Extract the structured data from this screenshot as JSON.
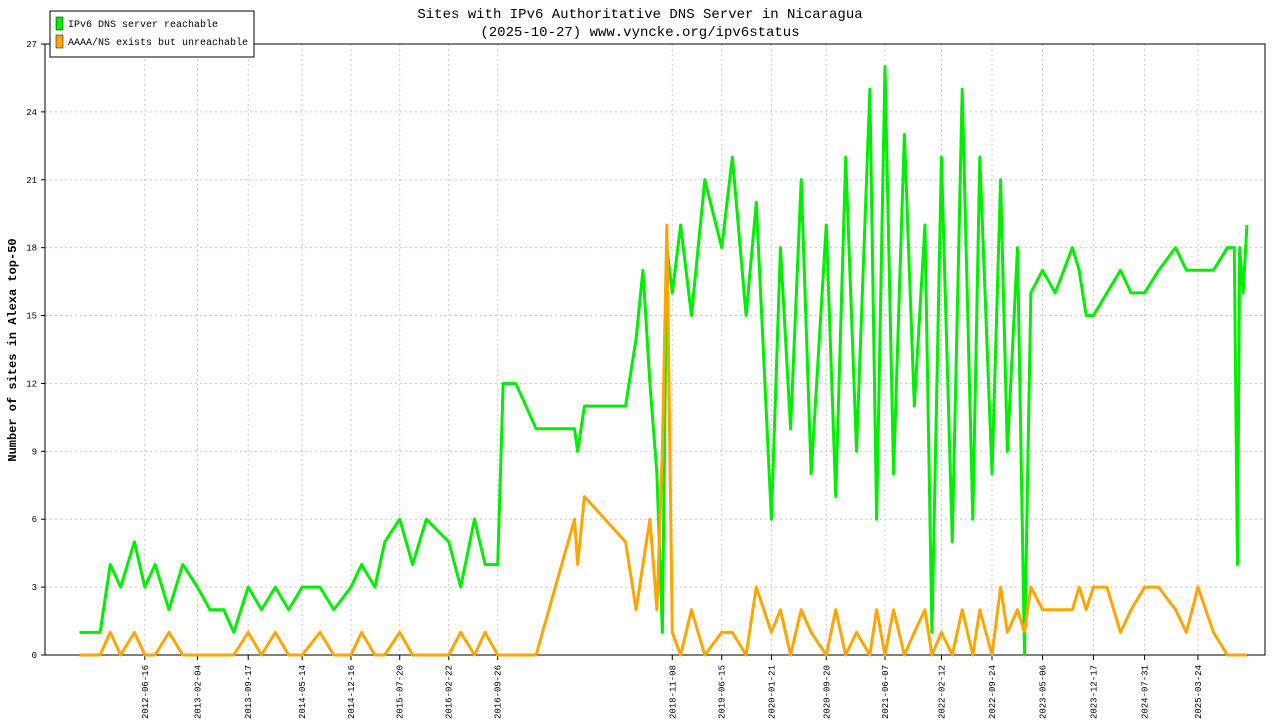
{
  "chart_data": {
    "type": "line",
    "title": "Sites with IPv6 Authoritative DNS Server in Nicaragua",
    "subtitle": "(2025-10-27) www.vyncke.org/ipv6status",
    "y_label": "Number of sites in Alexa top-50",
    "x": [
      "2011-09-01",
      "2011-12-01",
      "2012-01-15",
      "2012-03-01",
      "2012-05-01",
      "2012-06-16",
      "2012-08-01",
      "2012-10-01",
      "2012-12-01",
      "2013-02-04",
      "2013-04-01",
      "2013-06-01",
      "2013-07-15",
      "2013-09-17",
      "2013-11-15",
      "2014-01-15",
      "2014-03-15",
      "2014-05-14",
      "2014-08-01",
      "2014-10-01",
      "2014-12-16",
      "2015-02-01",
      "2015-04-01",
      "2015-05-15",
      "2015-07-20",
      "2015-09-15",
      "2015-11-15",
      "2016-02-22",
      "2016-04-15",
      "2016-06-15",
      "2016-08-01",
      "2016-09-26",
      "2016-10-20",
      "2016-12-15",
      "2017-03-15",
      "2017-09-01",
      "2017-09-15",
      "2017-10-15",
      "2018-04-15",
      "2018-06-01",
      "2018-07-01",
      "2018-08-01",
      "2018-09-01",
      "2018-09-25",
      "2018-10-15",
      "2018-11-08",
      "2018-12-15",
      "2019-02-01",
      "2019-04-01",
      "2019-06-15",
      "2019-08-01",
      "2019-10-01",
      "2019-11-15",
      "2020-01-21",
      "2020-03-01",
      "2020-04-15",
      "2020-06-01",
      "2020-07-15",
      "2020-09-20",
      "2020-11-01",
      "2020-12-15",
      "2021-02-01",
      "2021-04-01",
      "2021-05-01",
      "2021-06-07",
      "2021-07-15",
      "2021-09-01",
      "2021-10-15",
      "2021-12-01",
      "2022-01-01",
      "2022-02-12",
      "2022-04-01",
      "2022-05-15",
      "2022-07-01",
      "2022-08-01",
      "2022-09-24",
      "2022-11-01",
      "2022-12-01",
      "2023-01-15",
      "2023-02-15",
      "2023-03-15",
      "2023-05-06",
      "2023-07-01",
      "2023-09-15",
      "2023-10-15",
      "2023-11-15",
      "2023-12-17",
      "2024-02-15",
      "2024-04-15",
      "2024-06-01",
      "2024-07-31",
      "2024-10-01",
      "2024-12-15",
      "2025-02-01",
      "2025-03-24",
      "2025-06-01",
      "2025-08-01",
      "2025-09-01",
      "2025-09-15",
      "2025-09-25",
      "2025-10-10",
      "2025-10-27"
    ],
    "series": [
      {
        "name": "IPv6 DNS server reachable",
        "color": "#00ee00",
        "values": [
          1,
          1,
          4,
          3,
          5,
          3,
          4,
          2,
          4,
          3,
          2,
          2,
          1,
          3,
          2,
          3,
          2,
          3,
          3,
          2,
          3,
          4,
          3,
          5,
          6,
          4,
          6,
          5,
          3,
          6,
          4,
          4,
          12,
          12,
          10,
          10,
          9,
          11,
          11,
          14,
          17,
          12,
          8,
          1,
          18,
          16,
          19,
          15,
          21,
          18,
          22,
          15,
          20,
          6,
          18,
          10,
          21,
          8,
          19,
          7,
          22,
          9,
          25,
          6,
          26,
          8,
          23,
          11,
          19,
          1,
          22,
          5,
          25,
          6,
          22,
          8,
          21,
          9,
          18,
          0,
          16,
          17,
          16,
          18,
          17,
          15,
          15,
          16,
          17,
          16,
          16,
          17,
          18,
          17,
          17,
          17,
          18,
          18,
          4,
          18,
          16,
          19
        ]
      },
      {
        "name": "AAAA/NS exists but unreachable",
        "color": "#ffa500",
        "values": [
          0,
          0,
          1,
          0,
          1,
          0,
          0,
          1,
          0,
          0,
          0,
          0,
          0,
          1,
          0,
          1,
          0,
          0,
          1,
          0,
          0,
          1,
          0,
          0,
          1,
          0,
          0,
          0,
          1,
          0,
          1,
          0,
          0,
          0,
          0,
          6,
          4,
          7,
          5,
          2,
          4,
          6,
          2,
          9,
          19,
          1,
          0,
          2,
          0,
          1,
          1,
          0,
          3,
          1,
          2,
          0,
          2,
          1,
          0,
          2,
          0,
          1,
          0,
          2,
          0,
          2,
          0,
          1,
          2,
          0,
          1,
          0,
          2,
          0,
          2,
          0,
          3,
          1,
          2,
          1,
          3,
          2,
          2,
          2,
          3,
          2,
          3,
          3,
          1,
          2,
          3,
          3,
          2,
          1,
          3,
          1,
          0,
          0,
          0,
          0,
          0,
          0
        ]
      }
    ],
    "xlim": [
      "2011-04-01",
      "2026-01-15"
    ],
    "xticks": [
      "2012-06-16",
      "2013-02-04",
      "2013-09-17",
      "2014-05-14",
      "2014-12-16",
      "2015-07-20",
      "2016-02-22",
      "2016-09-26",
      "2018-11-08",
      "2019-06-15",
      "2020-01-21",
      "2020-09-20",
      "2021-06-07",
      "2022-02-12",
      "2022-09-24",
      "2023-05-06",
      "2023-12-17",
      "2024-07-31",
      "2025-03-24"
    ],
    "ylim": [
      0,
      27
    ],
    "yticks": [
      0,
      3,
      6,
      9,
      12,
      15,
      18,
      21,
      24,
      27
    ],
    "grid": true,
    "legend": "top-left"
  }
}
